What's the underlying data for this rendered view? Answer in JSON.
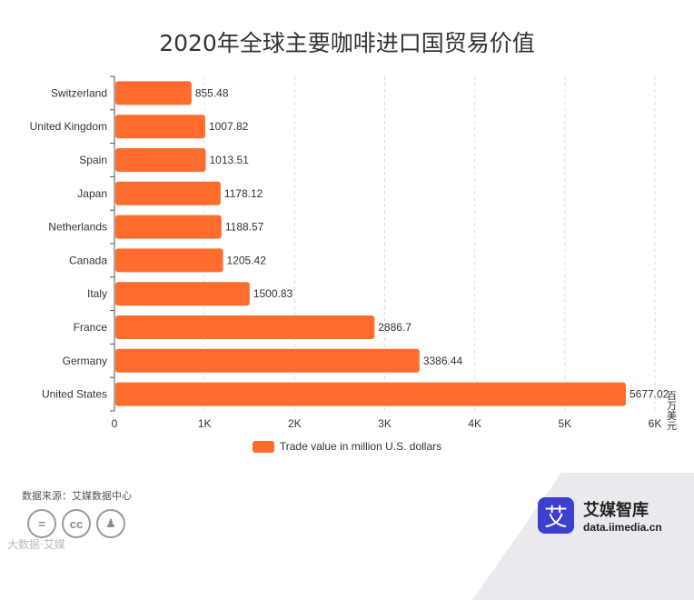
{
  "header": {
    "title": "2020年全球主要咖啡进口国贸易价值"
  },
  "chart_data": {
    "type": "bar",
    "orientation": "horizontal",
    "title": "2020年全球主要咖啡进口国贸易价值",
    "categories": [
      "Switzerland",
      "United Kingdom",
      "Spain",
      "Japan",
      "Netherlands",
      "Canada",
      "Italy",
      "France",
      "Germany",
      "United States"
    ],
    "series": [
      {
        "name": "Trade value in million U.S. dollars",
        "values": [
          855.48,
          1007.82,
          1013.51,
          1178.12,
          1188.57,
          1205.42,
          1500.83,
          2886.7,
          3386.44,
          5677.02
        ]
      }
    ],
    "data_labels": [
      "855.48",
      "1007.82",
      "1013.51",
      "1178.12",
      "1188.57",
      "1205.42",
      "1500.83",
      "2886.7",
      "3386.44",
      "5677.02"
    ],
    "xlim": [
      0,
      6000
    ],
    "xticks": [
      0,
      1000,
      2000,
      3000,
      4000,
      5000,
      6000
    ],
    "xtick_labels": [
      "0",
      "1K",
      "2K",
      "3K",
      "4K",
      "5K",
      "6K"
    ],
    "unit_label": "百万美元",
    "grid": true,
    "legend_position": "bottom",
    "bar_color": "#FF6D2E",
    "grid_color": "#dddddd"
  },
  "footer": {
    "source": "数据来源：艾媒数据中心",
    "license_icons": [
      "equal-icon",
      "cc-icon",
      "person-icon"
    ],
    "license_glyphs": [
      "=",
      "cc",
      "♟"
    ],
    "license_text": "大数据·艾媒"
  },
  "brand": {
    "logo_char": "艾",
    "name": "艾媒智库",
    "url": "data.iimedia.cn",
    "color": "#3d3fcf"
  }
}
